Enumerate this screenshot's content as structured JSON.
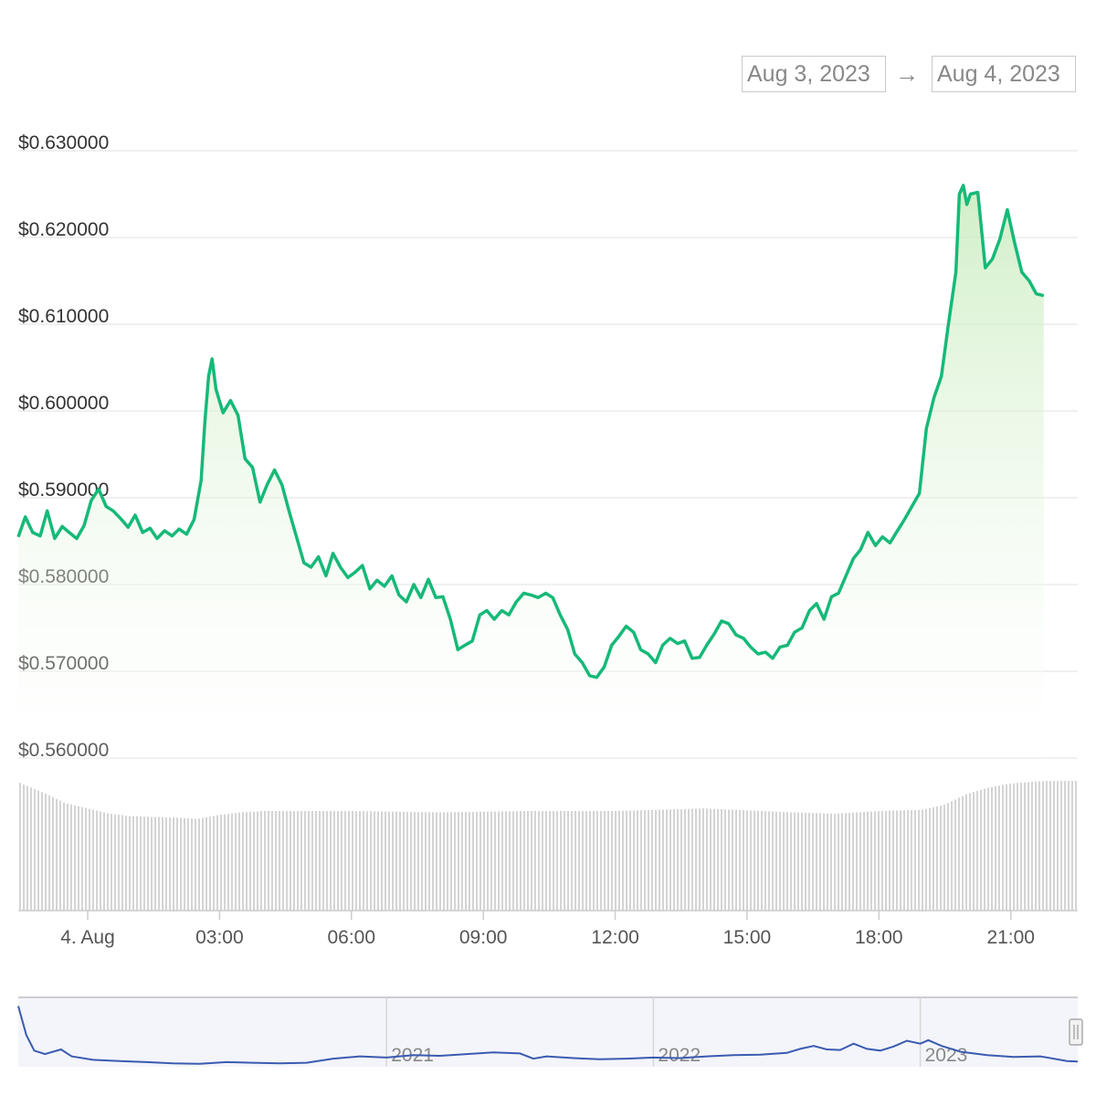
{
  "range_selector": {
    "from": "Aug 3, 2023",
    "arrow": "→",
    "to": "Aug 4, 2023"
  },
  "colors": {
    "line": "#16b978",
    "area_top": "#c8ecbd",
    "volume": "#c9c9c9",
    "navigator_line": "#3a5bb0",
    "grid": "#ececec"
  },
  "chart_data": {
    "type": "area",
    "title": "",
    "xlabel": "",
    "ylabel": "",
    "x_unit": "hours since 4 Aug 00:00 (UTC)",
    "ylim": [
      0.56,
      0.63
    ],
    "y_ticks": [
      {
        "value": 0.63,
        "label": "$0.630000"
      },
      {
        "value": 0.62,
        "label": "$0.620000"
      },
      {
        "value": 0.61,
        "label": "$0.610000"
      },
      {
        "value": 0.6,
        "label": "$0.600000"
      },
      {
        "value": 0.59,
        "label": "$0.590000"
      },
      {
        "value": 0.58,
        "label": "$0.580000"
      },
      {
        "value": 0.57,
        "label": "$0.570000"
      },
      {
        "value": 0.56,
        "label": "$0.560000"
      }
    ],
    "x_ticks": [
      {
        "value": 0,
        "label": "4. Aug"
      },
      {
        "value": 3,
        "label": "03:00"
      },
      {
        "value": 6,
        "label": "06:00"
      },
      {
        "value": 9,
        "label": "09:00"
      },
      {
        "value": 12,
        "label": "12:00"
      },
      {
        "value": 15,
        "label": "15:00"
      },
      {
        "value": 18,
        "label": "18:00"
      },
      {
        "value": 21,
        "label": "21:00"
      }
    ],
    "price": [
      [
        -1.58,
        0.5855
      ],
      [
        -1.42,
        0.5878
      ],
      [
        -1.25,
        0.586
      ],
      [
        -1.08,
        0.5856
      ],
      [
        -0.92,
        0.5885
      ],
      [
        -0.75,
        0.5853
      ],
      [
        -0.58,
        0.5867
      ],
      [
        -0.42,
        0.586
      ],
      [
        -0.25,
        0.5853
      ],
      [
        -0.08,
        0.5868
      ],
      [
        0.08,
        0.5897
      ],
      [
        0.25,
        0.591
      ],
      [
        0.42,
        0.589
      ],
      [
        0.58,
        0.5885
      ],
      [
        0.75,
        0.5876
      ],
      [
        0.92,
        0.5866
      ],
      [
        1.08,
        0.588
      ],
      [
        1.25,
        0.586
      ],
      [
        1.42,
        0.5865
      ],
      [
        1.58,
        0.5853
      ],
      [
        1.75,
        0.5862
      ],
      [
        1.92,
        0.5856
      ],
      [
        2.08,
        0.5864
      ],
      [
        2.25,
        0.5858
      ],
      [
        2.42,
        0.5875
      ],
      [
        2.58,
        0.592
      ],
      [
        2.67,
        0.599
      ],
      [
        2.75,
        0.604
      ],
      [
        2.83,
        0.606
      ],
      [
        2.92,
        0.6025
      ],
      [
        3.08,
        0.5998
      ],
      [
        3.25,
        0.6012
      ],
      [
        3.42,
        0.5995
      ],
      [
        3.58,
        0.5945
      ],
      [
        3.75,
        0.5935
      ],
      [
        3.92,
        0.5895
      ],
      [
        4.08,
        0.5915
      ],
      [
        4.25,
        0.5932
      ],
      [
        4.42,
        0.5915
      ],
      [
        4.58,
        0.5885
      ],
      [
        4.75,
        0.5855
      ],
      [
        4.92,
        0.5825
      ],
      [
        5.08,
        0.582
      ],
      [
        5.25,
        0.5832
      ],
      [
        5.42,
        0.581
      ],
      [
        5.58,
        0.5836
      ],
      [
        5.75,
        0.582
      ],
      [
        5.92,
        0.5808
      ],
      [
        6.08,
        0.5814
      ],
      [
        6.25,
        0.5822
      ],
      [
        6.42,
        0.5795
      ],
      [
        6.58,
        0.5805
      ],
      [
        6.75,
        0.5798
      ],
      [
        6.92,
        0.581
      ],
      [
        7.08,
        0.5788
      ],
      [
        7.25,
        0.578
      ],
      [
        7.42,
        0.58
      ],
      [
        7.58,
        0.5785
      ],
      [
        7.75,
        0.5806
      ],
      [
        7.92,
        0.5785
      ],
      [
        8.08,
        0.5786
      ],
      [
        8.25,
        0.576
      ],
      [
        8.42,
        0.5725
      ],
      [
        8.58,
        0.573
      ],
      [
        8.75,
        0.5735
      ],
      [
        8.92,
        0.5765
      ],
      [
        9.08,
        0.577
      ],
      [
        9.25,
        0.576
      ],
      [
        9.42,
        0.577
      ],
      [
        9.58,
        0.5765
      ],
      [
        9.75,
        0.578
      ],
      [
        9.92,
        0.579
      ],
      [
        10.08,
        0.5788
      ],
      [
        10.25,
        0.5785
      ],
      [
        10.42,
        0.579
      ],
      [
        10.58,
        0.5785
      ],
      [
        10.75,
        0.5765
      ],
      [
        10.92,
        0.5748
      ],
      [
        11.08,
        0.572
      ],
      [
        11.25,
        0.571
      ],
      [
        11.42,
        0.5695
      ],
      [
        11.58,
        0.5693
      ],
      [
        11.75,
        0.5705
      ],
      [
        11.92,
        0.573
      ],
      [
        12.08,
        0.574
      ],
      [
        12.25,
        0.5752
      ],
      [
        12.42,
        0.5745
      ],
      [
        12.58,
        0.5725
      ],
      [
        12.75,
        0.572
      ],
      [
        12.92,
        0.571
      ],
      [
        13.08,
        0.573
      ],
      [
        13.25,
        0.5738
      ],
      [
        13.42,
        0.5732
      ],
      [
        13.58,
        0.5735
      ],
      [
        13.75,
        0.5715
      ],
      [
        13.92,
        0.5716
      ],
      [
        14.08,
        0.573
      ],
      [
        14.25,
        0.5743
      ],
      [
        14.42,
        0.5758
      ],
      [
        14.58,
        0.5755
      ],
      [
        14.75,
        0.5742
      ],
      [
        14.92,
        0.5738
      ],
      [
        15.08,
        0.5728
      ],
      [
        15.25,
        0.572
      ],
      [
        15.42,
        0.5722
      ],
      [
        15.58,
        0.5715
      ],
      [
        15.75,
        0.5728
      ],
      [
        15.92,
        0.573
      ],
      [
        16.08,
        0.5745
      ],
      [
        16.25,
        0.575
      ],
      [
        16.42,
        0.577
      ],
      [
        16.58,
        0.5778
      ],
      [
        16.75,
        0.576
      ],
      [
        16.92,
        0.5786
      ],
      [
        17.08,
        0.579
      ],
      [
        17.25,
        0.581
      ],
      [
        17.42,
        0.583
      ],
      [
        17.58,
        0.584
      ],
      [
        17.75,
        0.586
      ],
      [
        17.92,
        0.5845
      ],
      [
        18.08,
        0.5855
      ],
      [
        18.25,
        0.5848
      ],
      [
        18.42,
        0.5862
      ],
      [
        18.58,
        0.5875
      ],
      [
        18.75,
        0.589
      ],
      [
        18.92,
        0.5905
      ],
      [
        19.08,
        0.598
      ],
      [
        19.25,
        0.6015
      ],
      [
        19.42,
        0.604
      ],
      [
        19.58,
        0.61
      ],
      [
        19.75,
        0.616
      ],
      [
        19.83,
        0.625
      ],
      [
        19.92,
        0.626
      ],
      [
        20.0,
        0.6238
      ],
      [
        20.08,
        0.625
      ],
      [
        20.25,
        0.6252
      ],
      [
        20.42,
        0.6165
      ],
      [
        20.58,
        0.6175
      ],
      [
        20.75,
        0.6198
      ],
      [
        20.92,
        0.6232
      ],
      [
        21.08,
        0.6195
      ],
      [
        21.25,
        0.616
      ],
      [
        21.42,
        0.615
      ],
      [
        21.58,
        0.6135
      ],
      [
        21.75,
        0.6133
      ]
    ],
    "volume_relative": [
      [
        -1.58,
        0.98
      ],
      [
        -1.0,
        0.9
      ],
      [
        -0.5,
        0.82
      ],
      [
        0.0,
        0.78
      ],
      [
        0.5,
        0.74
      ],
      [
        1.0,
        0.72
      ],
      [
        2.0,
        0.71
      ],
      [
        2.5,
        0.7
      ],
      [
        3.0,
        0.73
      ],
      [
        3.5,
        0.75
      ],
      [
        4.0,
        0.76
      ],
      [
        5.0,
        0.76
      ],
      [
        6.0,
        0.76
      ],
      [
        8.0,
        0.75
      ],
      [
        10.0,
        0.76
      ],
      [
        12.0,
        0.76
      ],
      [
        14.0,
        0.78
      ],
      [
        16.0,
        0.75
      ],
      [
        17.0,
        0.74
      ],
      [
        18.0,
        0.76
      ],
      [
        19.0,
        0.77
      ],
      [
        19.5,
        0.81
      ],
      [
        20.0,
        0.89
      ],
      [
        20.5,
        0.94
      ],
      [
        21.0,
        0.97
      ],
      [
        21.75,
        0.99
      ]
    ],
    "navigator": {
      "x_ticks": [
        {
          "value": 2021,
          "label": "2021"
        },
        {
          "value": 2022,
          "label": "2022"
        },
        {
          "value": 2023,
          "label": "2023"
        }
      ],
      "xlim": [
        2019.62,
        2023.59
      ],
      "ylim": [
        0.0,
        1.2
      ],
      "series": [
        [
          2019.62,
          1.05
        ],
        [
          2019.65,
          0.55
        ],
        [
          2019.68,
          0.28
        ],
        [
          2019.72,
          0.22
        ],
        [
          2019.78,
          0.3
        ],
        [
          2019.82,
          0.18
        ],
        [
          2019.9,
          0.12
        ],
        [
          2020.0,
          0.1
        ],
        [
          2020.1,
          0.08
        ],
        [
          2020.2,
          0.06
        ],
        [
          2020.3,
          0.05
        ],
        [
          2020.4,
          0.08
        ],
        [
          2020.5,
          0.07
        ],
        [
          2020.6,
          0.06
        ],
        [
          2020.7,
          0.07
        ],
        [
          2020.8,
          0.14
        ],
        [
          2020.9,
          0.18
        ],
        [
          2021.0,
          0.16
        ],
        [
          2021.1,
          0.2
        ],
        [
          2021.2,
          0.19
        ],
        [
          2021.3,
          0.22
        ],
        [
          2021.4,
          0.25
        ],
        [
          2021.5,
          0.23
        ],
        [
          2021.55,
          0.14
        ],
        [
          2021.6,
          0.18
        ],
        [
          2021.7,
          0.15
        ],
        [
          2021.8,
          0.13
        ],
        [
          2021.9,
          0.14
        ],
        [
          2022.0,
          0.16
        ],
        [
          2022.1,
          0.15
        ],
        [
          2022.2,
          0.18
        ],
        [
          2022.3,
          0.2
        ],
        [
          2022.4,
          0.21
        ],
        [
          2022.5,
          0.24
        ],
        [
          2022.55,
          0.31
        ],
        [
          2022.6,
          0.36
        ],
        [
          2022.65,
          0.3
        ],
        [
          2022.7,
          0.29
        ],
        [
          2022.75,
          0.4
        ],
        [
          2022.8,
          0.31
        ],
        [
          2022.85,
          0.28
        ],
        [
          2022.9,
          0.35
        ],
        [
          2022.95,
          0.45
        ],
        [
          2023.0,
          0.4
        ],
        [
          2023.03,
          0.46
        ],
        [
          2023.08,
          0.36
        ],
        [
          2023.15,
          0.26
        ],
        [
          2023.25,
          0.2
        ],
        [
          2023.35,
          0.17
        ],
        [
          2023.45,
          0.18
        ],
        [
          2023.55,
          0.1
        ],
        [
          2023.59,
          0.09
        ]
      ]
    }
  }
}
